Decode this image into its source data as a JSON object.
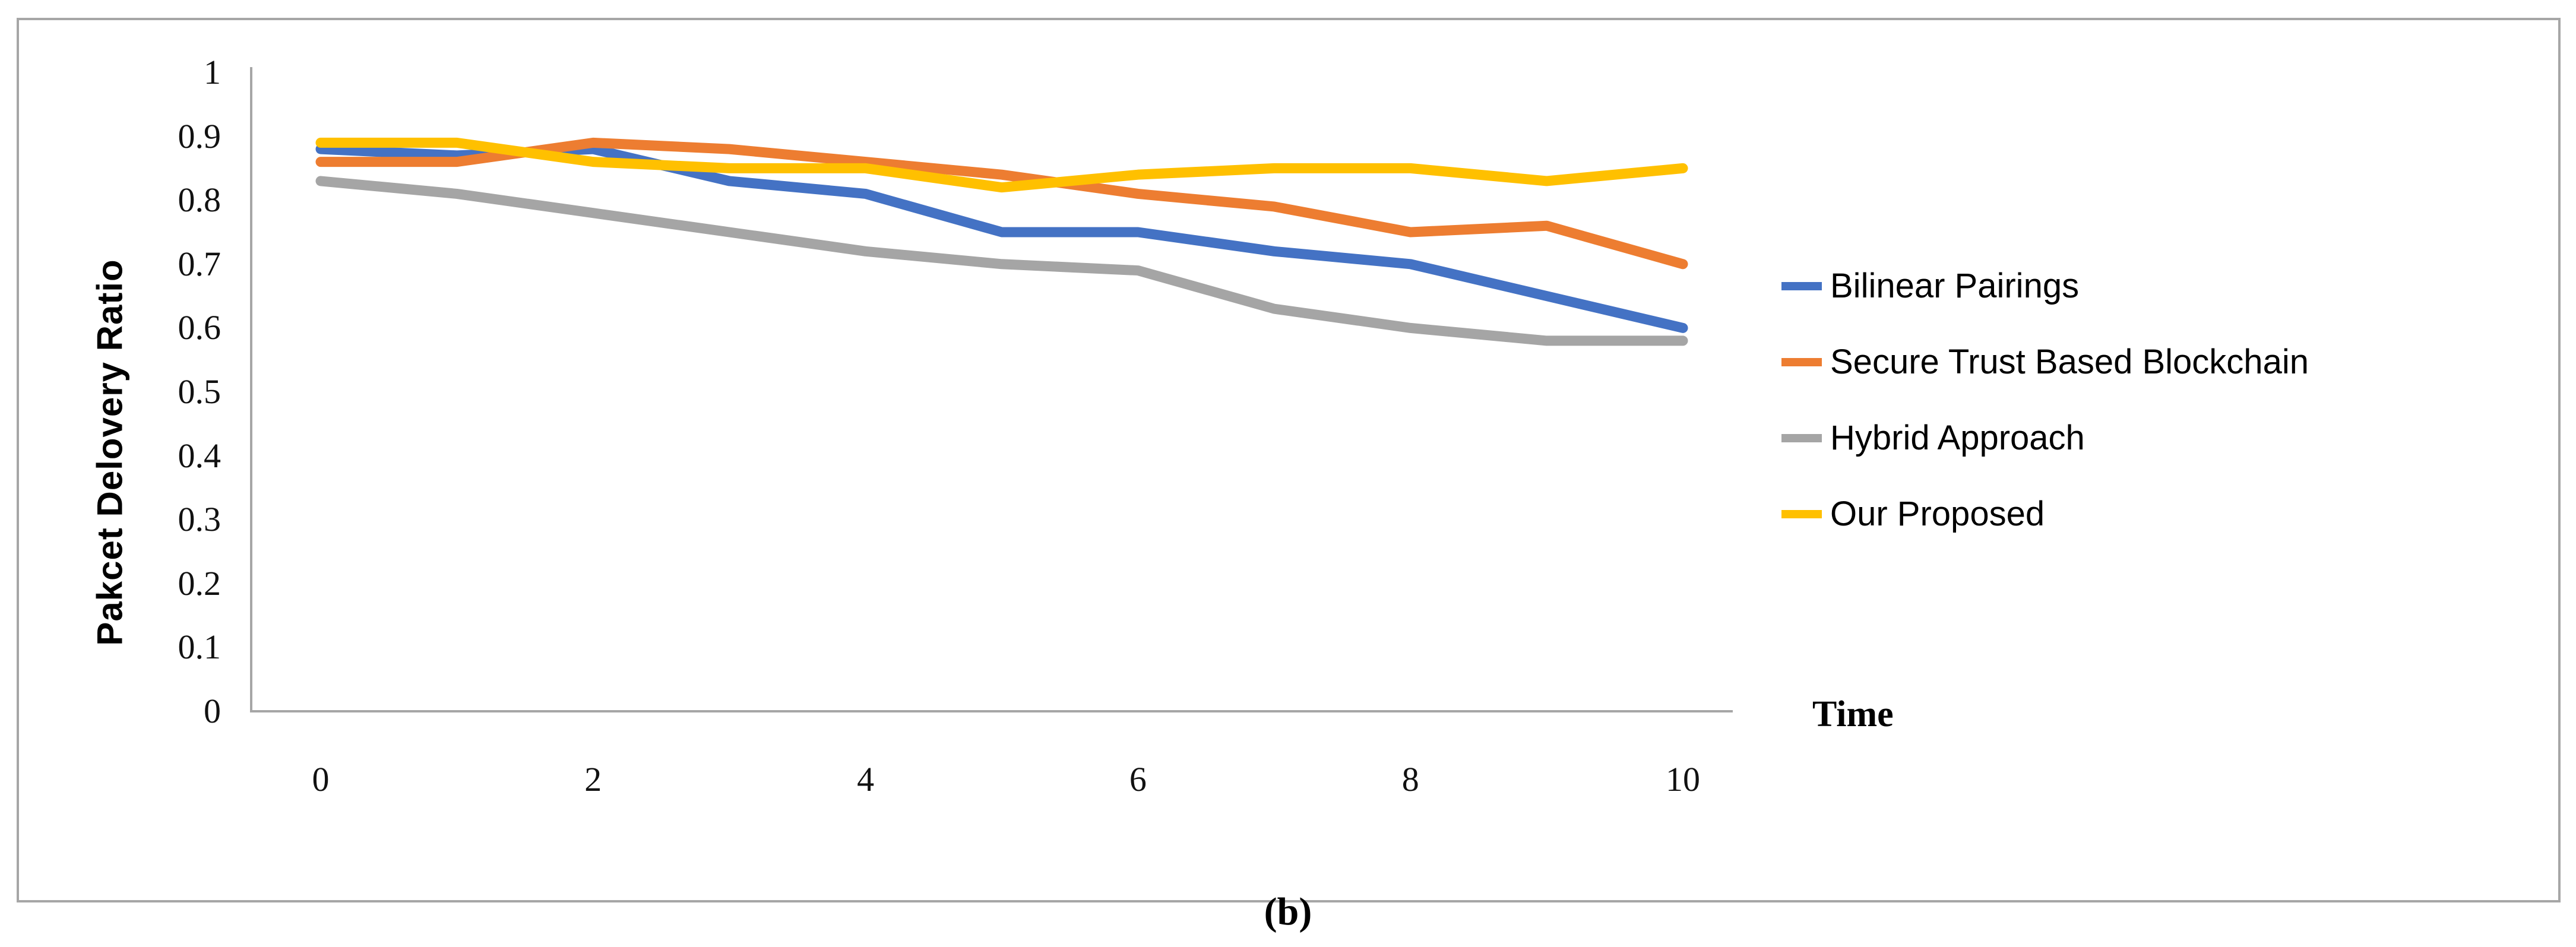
{
  "figure": {
    "caption": "(b)",
    "xaxis_title": "Time",
    "yaxis_title": "Pakcet Delovery Ratio"
  },
  "chart_data": {
    "type": "line",
    "title": "",
    "xlabel": "Time",
    "ylabel": "Pakcet Delovery Ratio",
    "x": [
      0,
      1,
      2,
      3,
      4,
      5,
      6,
      7,
      8,
      9,
      10
    ],
    "xlim": [
      0,
      10
    ],
    "ylim": [
      0,
      1
    ],
    "grid": false,
    "legend_position": "right",
    "xtick_labels": [
      "0",
      "2",
      "4",
      "6",
      "8",
      "10"
    ],
    "ytick_labels": [
      "1",
      "0.9",
      "0.8",
      "0.7",
      "0.6",
      "0.5",
      "0.4",
      "0.3",
      "0.2",
      "0.1",
      "0"
    ],
    "series": [
      {
        "name": "Bilinear Pairings",
        "color": "#4472C4",
        "values": [
          0.88,
          0.87,
          0.88,
          0.83,
          0.81,
          0.75,
          0.75,
          0.72,
          0.7,
          0.65,
          0.6
        ]
      },
      {
        "name": "Secure Trust Based Blockchain",
        "color": "#ED7D31",
        "values": [
          0.86,
          0.86,
          0.89,
          0.88,
          0.86,
          0.84,
          0.81,
          0.79,
          0.75,
          0.76,
          0.7
        ]
      },
      {
        "name": "Hybrid Approach",
        "color": "#A5A5A5",
        "values": [
          0.83,
          0.81,
          0.78,
          0.75,
          0.72,
          0.7,
          0.69,
          0.63,
          0.6,
          0.58,
          0.58
        ]
      },
      {
        "name": "Our Proposed",
        "color": "#FFC000",
        "values": [
          0.89,
          0.89,
          0.86,
          0.85,
          0.85,
          0.82,
          0.84,
          0.85,
          0.85,
          0.83,
          0.85
        ]
      }
    ]
  },
  "style": {
    "axis_color": "#a6a6a6",
    "panel_border_color": "#a6a6a6",
    "line_width": 17
  }
}
